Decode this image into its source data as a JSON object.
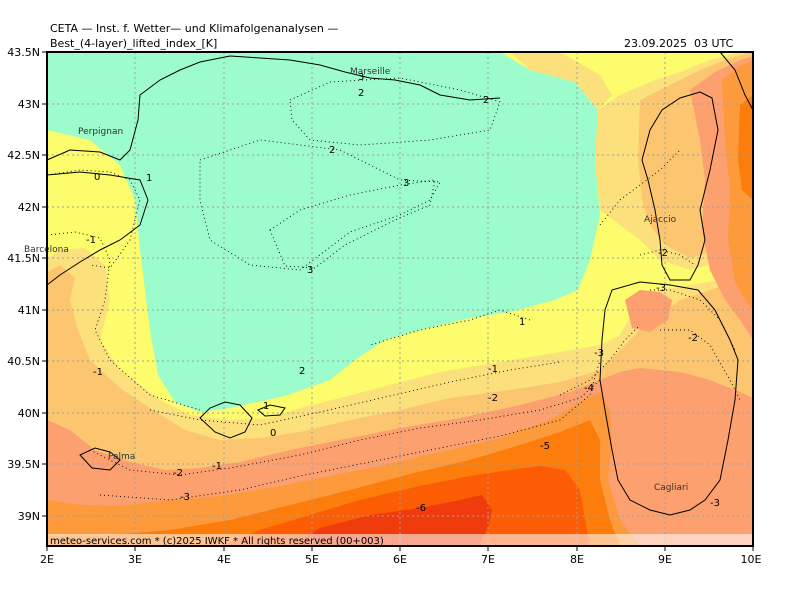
{
  "header": {
    "model_title": "CETA — Inst. f. Wetter— und Klimafolgenanalysen —",
    "parameter": "Best_(4-layer)_lifted_index_[K]",
    "valid_time": "23.09.2025  03 UTC"
  },
  "footer": "meteo-services.com * (c)2025 IWKF * All rights reserved (00+003)",
  "axes": {
    "lat_labels": [
      "43.5N",
      "43N",
      "42.5N",
      "42N",
      "41.5N",
      "41N",
      "40.5N",
      "40N",
      "39.5N",
      "39N"
    ],
    "lon_labels": [
      "2E",
      "3E",
      "4E",
      "5E",
      "6E",
      "7E",
      "8E",
      "9E",
      "10E"
    ]
  },
  "cities": [
    "Marseille",
    "Perpignan",
    "Barcelona",
    "Ajaccio",
    "Palma",
    "Cagliari"
  ],
  "contour_labels": [
    "3",
    "2",
    "2",
    "2",
    "3",
    "3",
    "0",
    "1",
    "-1",
    "-1",
    "2",
    "1",
    "-1",
    "-2",
    "-3",
    "-4",
    "-5",
    "-6",
    "1",
    "0",
    "-1",
    "-2",
    "-3",
    "-2",
    "-3",
    "-2",
    "-3"
  ],
  "colors": {
    "li_above_1": "#9cfccc",
    "li_0_to_1": "#fcfc6c",
    "li_m1_to_0": "#fce07c",
    "li_m2_to_m1": "#fcc670",
    "li_m3_to_m2": "#fca070",
    "li_m4_to_m3": "#fc9a3c",
    "li_m5_to_m4": "#fc7c0c",
    "li_m6_to_m5": "#fc5c04",
    "li_below_m6": "#f03c0c"
  }
}
